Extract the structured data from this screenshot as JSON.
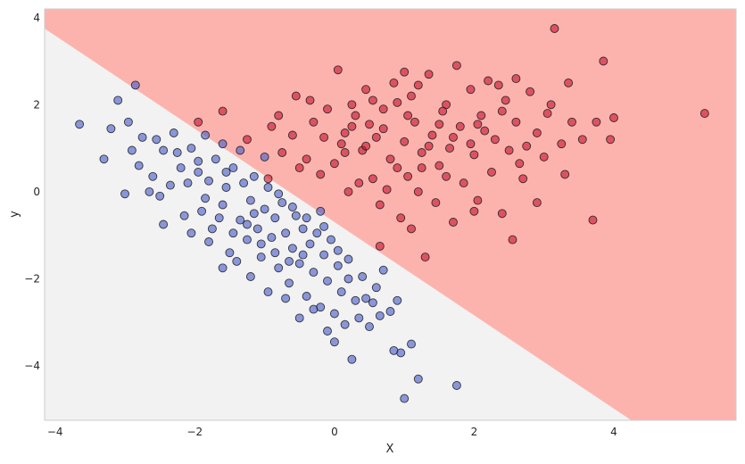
{
  "chart_data": {
    "type": "scatter",
    "title": "",
    "xlabel": "X",
    "ylabel": "y",
    "xlim": [
      -4.15,
      5.75
    ],
    "ylim": [
      -5.25,
      4.2
    ],
    "grid": false,
    "legend": "none",
    "x_ticks": [
      -4,
      -2,
      0,
      2,
      4
    ],
    "x_tick_labels": [
      "−4",
      "−2",
      "0",
      "2",
      "4"
    ],
    "y_ticks": [
      -4,
      -2,
      0,
      2,
      4
    ],
    "y_tick_labels": [
      "−4",
      "−2",
      "0",
      "2",
      "4"
    ],
    "decision_boundary": {
      "points": [
        [
          -4.15,
          3.75
        ],
        [
          4.25,
          -5.25
        ]
      ]
    },
    "regions": [
      {
        "name": "",
        "color": "#f2f2f2"
      },
      {
        "name": "",
        "color": "#fcb3ae"
      }
    ],
    "series": [
      {
        "name": "",
        "color": "#4458c9",
        "points": [
          [
            -3.65,
            1.55
          ],
          [
            -3.3,
            0.75
          ],
          [
            -3.2,
            1.45
          ],
          [
            -3.1,
            2.1
          ],
          [
            -2.95,
            1.6
          ],
          [
            -2.85,
            2.45
          ],
          [
            -3.0,
            -0.05
          ],
          [
            -2.8,
            0.6
          ],
          [
            -2.9,
            0.95
          ],
          [
            -2.6,
            0.35
          ],
          [
            -2.55,
            1.2
          ],
          [
            -2.5,
            -0.1
          ],
          [
            -2.45,
            0.95
          ],
          [
            -2.35,
            0.15
          ],
          [
            -2.3,
            1.35
          ],
          [
            -2.2,
            0.55
          ],
          [
            -2.15,
            -0.55
          ],
          [
            -2.05,
            1.0
          ],
          [
            -1.95,
            0.45
          ],
          [
            -1.85,
            1.3
          ],
          [
            -1.8,
            0.25
          ],
          [
            -1.75,
            -0.85
          ],
          [
            -1.7,
            0.75
          ],
          [
            -1.6,
            -0.3
          ],
          [
            -1.55,
            0.1
          ],
          [
            -1.5,
            -1.4
          ],
          [
            -1.45,
            0.55
          ],
          [
            -1.35,
            -0.65
          ],
          [
            -1.3,
            0.2
          ],
          [
            -1.25,
            -1.1
          ],
          [
            -1.2,
            -0.2
          ],
          [
            -1.15,
            0.35
          ],
          [
            -1.1,
            -0.85
          ],
          [
            -1.05,
            -1.5
          ],
          [
            -1.0,
            -0.4
          ],
          [
            -0.95,
            0.1
          ],
          [
            -0.9,
            -1.05
          ],
          [
            -0.85,
            -0.6
          ],
          [
            -0.8,
            -1.75
          ],
          [
            -0.75,
            -0.25
          ],
          [
            -0.7,
            -0.95
          ],
          [
            -0.65,
            -2.1
          ],
          [
            -0.6,
            -1.3
          ],
          [
            -0.55,
            -0.55
          ],
          [
            -0.5,
            -1.65
          ],
          [
            -0.45,
            -0.85
          ],
          [
            -0.4,
            -2.4
          ],
          [
            -0.35,
            -1.2
          ],
          [
            -0.3,
            -1.85
          ],
          [
            -0.25,
            -0.95
          ],
          [
            -0.2,
            -2.65
          ],
          [
            -0.15,
            -1.45
          ],
          [
            -0.1,
            -2.05
          ],
          [
            -0.05,
            -1.1
          ],
          [
            0.0,
            -2.8
          ],
          [
            0.05,
            -1.7
          ],
          [
            0.1,
            -2.3
          ],
          [
            0.15,
            -3.05
          ],
          [
            0.2,
            -1.55
          ],
          [
            0.3,
            -2.5
          ],
          [
            0.4,
            -1.95
          ],
          [
            0.5,
            -3.1
          ],
          [
            0.6,
            -2.2
          ],
          [
            0.8,
            -2.75
          ],
          [
            0.25,
            -3.85
          ],
          [
            0.0,
            -3.45
          ],
          [
            -0.5,
            -2.9
          ],
          [
            0.7,
            -1.8
          ],
          [
            0.9,
            -2.5
          ],
          [
            1.1,
            -3.5
          ],
          [
            1.0,
            -4.75
          ],
          [
            0.95,
            -3.7
          ],
          [
            0.85,
            -3.65
          ],
          [
            1.2,
            -4.3
          ],
          [
            1.75,
            -4.45
          ],
          [
            -1.6,
            -1.75
          ],
          [
            -1.9,
            -0.45
          ],
          [
            -2.25,
            0.9
          ],
          [
            -2.05,
            -0.95
          ],
          [
            -2.45,
            -0.75
          ],
          [
            -1.8,
            -1.15
          ],
          [
            -1.4,
            -1.6
          ],
          [
            -1.2,
            -1.95
          ],
          [
            -0.95,
            -2.3
          ],
          [
            -0.7,
            -2.45
          ],
          [
            -0.3,
            -2.7
          ],
          [
            -0.1,
            -3.2
          ],
          [
            0.35,
            -2.9
          ],
          [
            0.55,
            -2.55
          ],
          [
            -1.0,
            0.8
          ],
          [
            -1.35,
            0.95
          ],
          [
            -1.6,
            1.1
          ],
          [
            -2.65,
            0.0
          ],
          [
            -2.75,
            1.25
          ],
          [
            -1.55,
            0.45
          ],
          [
            -1.15,
            -0.5
          ],
          [
            -0.8,
            -0.05
          ],
          [
            -0.6,
            -0.35
          ],
          [
            -0.4,
            -0.6
          ],
          [
            -0.2,
            -0.45
          ],
          [
            -0.45,
            -1.45
          ],
          [
            -0.65,
            -1.6
          ],
          [
            -0.85,
            -1.4
          ],
          [
            -1.05,
            -1.2
          ],
          [
            -1.25,
            -0.75
          ],
          [
            -1.45,
            -0.95
          ],
          [
            -1.65,
            -0.6
          ],
          [
            -1.85,
            -0.15
          ],
          [
            -1.95,
            0.7
          ],
          [
            -2.1,
            0.2
          ],
          [
            -0.15,
            -0.8
          ],
          [
            0.05,
            -1.35
          ],
          [
            0.2,
            -2.0
          ],
          [
            0.45,
            -2.45
          ],
          [
            0.65,
            -2.85
          ]
        ]
      },
      {
        "name": "",
        "color": "#c8102e",
        "points": [
          [
            -1.95,
            1.6
          ],
          [
            -1.6,
            1.85
          ],
          [
            -1.25,
            1.2
          ],
          [
            -0.95,
            0.3
          ],
          [
            -0.9,
            1.5
          ],
          [
            -0.75,
            0.9
          ],
          [
            -0.6,
            1.3
          ],
          [
            -0.55,
            2.2
          ],
          [
            -0.4,
            0.75
          ],
          [
            -0.3,
            1.6
          ],
          [
            -0.2,
            0.4
          ],
          [
            -0.1,
            1.9
          ],
          [
            0.0,
            0.65
          ],
          [
            0.05,
            2.8
          ],
          [
            0.15,
            1.35
          ],
          [
            0.2,
            0.0
          ],
          [
            0.3,
            1.75
          ],
          [
            0.4,
            0.95
          ],
          [
            0.45,
            2.35
          ],
          [
            0.55,
            0.3
          ],
          [
            0.6,
            1.25
          ],
          [
            0.65,
            -0.3
          ],
          [
            0.7,
            1.9
          ],
          [
            0.8,
            0.75
          ],
          [
            0.85,
            2.5
          ],
          [
            0.95,
            -0.6
          ],
          [
            1.0,
            1.15
          ],
          [
            1.05,
            0.35
          ],
          [
            1.1,
            2.2
          ],
          [
            1.15,
            1.6
          ],
          [
            1.2,
            0.0
          ],
          [
            1.25,
            0.9
          ],
          [
            1.3,
            -1.5
          ],
          [
            1.35,
            2.7
          ],
          [
            1.4,
            1.3
          ],
          [
            1.45,
            -0.25
          ],
          [
            1.5,
            0.6
          ],
          [
            1.6,
            2.0
          ],
          [
            1.65,
            1.0
          ],
          [
            1.7,
            -0.7
          ],
          [
            1.75,
            2.9
          ],
          [
            1.8,
            1.5
          ],
          [
            1.85,
            0.2
          ],
          [
            1.95,
            2.35
          ],
          [
            2.0,
            0.85
          ],
          [
            2.05,
            -0.2
          ],
          [
            2.1,
            1.75
          ],
          [
            2.2,
            2.55
          ],
          [
            2.25,
            0.45
          ],
          [
            2.3,
            1.2
          ],
          [
            2.4,
            -0.5
          ],
          [
            2.45,
            2.1
          ],
          [
            2.5,
            0.95
          ],
          [
            2.55,
            -1.1
          ],
          [
            2.6,
            1.6
          ],
          [
            2.7,
            0.3
          ],
          [
            2.8,
            2.3
          ],
          [
            2.9,
            1.35
          ],
          [
            3.0,
            0.8
          ],
          [
            3.1,
            2.0
          ],
          [
            3.15,
            3.75
          ],
          [
            3.25,
            1.1
          ],
          [
            3.3,
            0.4
          ],
          [
            3.4,
            1.6
          ],
          [
            3.55,
            1.2
          ],
          [
            3.7,
            -0.65
          ],
          [
            3.75,
            1.6
          ],
          [
            3.85,
            3.0
          ],
          [
            3.95,
            1.2
          ],
          [
            4.0,
            1.7
          ],
          [
            5.3,
            1.8
          ],
          [
            0.65,
            -1.25
          ],
          [
            1.1,
            -0.85
          ],
          [
            2.0,
            -0.45
          ],
          [
            2.9,
            -0.25
          ],
          [
            0.25,
            2.0
          ],
          [
            1.0,
            2.75
          ],
          [
            -0.35,
            2.1
          ],
          [
            0.1,
            1.1
          ],
          [
            0.5,
            1.55
          ],
          [
            0.9,
            0.55
          ],
          [
            1.55,
            1.85
          ],
          [
            2.15,
            1.4
          ],
          [
            2.65,
            0.65
          ],
          [
            3.05,
            1.8
          ],
          [
            -0.8,
            1.75
          ],
          [
            -0.5,
            0.55
          ],
          [
            0.35,
            0.2
          ],
          [
            0.75,
            0.05
          ],
          [
            1.2,
            2.45
          ],
          [
            1.6,
            0.35
          ],
          [
            1.95,
            1.1
          ],
          [
            2.35,
            2.45
          ],
          [
            2.75,
            1.05
          ],
          [
            3.35,
            2.5
          ],
          [
            -0.15,
            1.25
          ],
          [
            0.15,
            0.9
          ],
          [
            0.45,
            1.05
          ],
          [
            0.7,
            1.45
          ],
          [
            1.05,
            1.75
          ],
          [
            1.35,
            1.05
          ],
          [
            1.7,
            1.25
          ],
          [
            2.05,
            1.55
          ],
          [
            2.4,
            1.85
          ],
          [
            2.6,
            2.6
          ],
          [
            0.9,
            2.05
          ],
          [
            0.55,
            2.1
          ],
          [
            0.25,
            1.5
          ],
          [
            1.25,
            0.55
          ],
          [
            1.5,
            1.55
          ]
        ]
      }
    ]
  }
}
